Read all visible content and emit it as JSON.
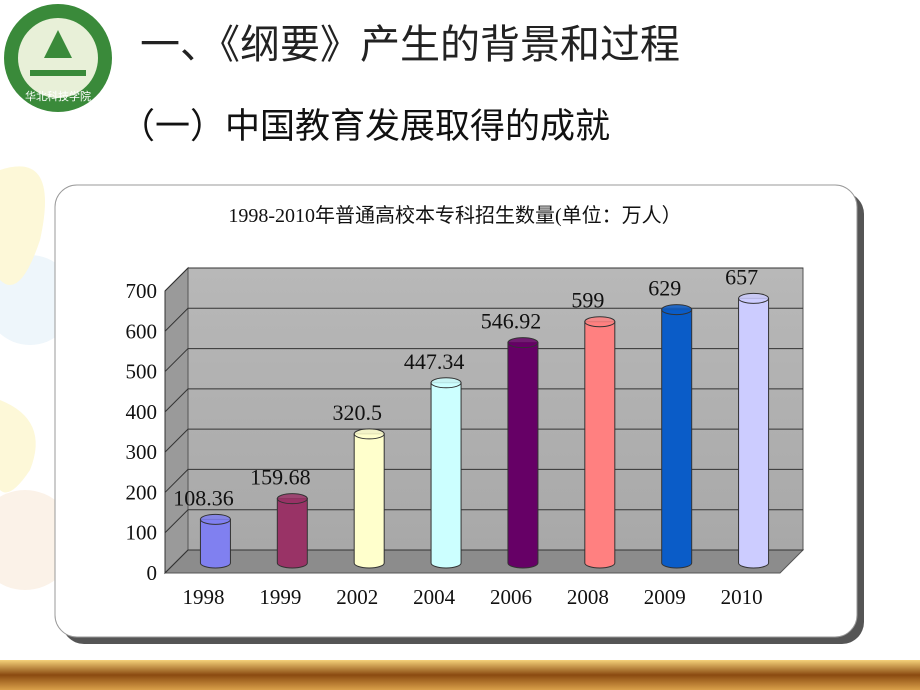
{
  "slide": {
    "title": "一、《纲要》产生的背景和过程",
    "subtitle": "（一）中国教育发展取得的成就",
    "logo_text": "华北科技学院"
  },
  "chart_data": {
    "type": "bar",
    "title": "1998-2010年普通高校本专科招生数量(单位：万人）",
    "categories": [
      "1998",
      "1999",
      "2002",
      "2004",
      "2006",
      "2008",
      "2009",
      "2010"
    ],
    "values": [
      108.36,
      159.68,
      320.5,
      447.34,
      546.92,
      599,
      629,
      657
    ],
    "colors": [
      "#8080f0",
      "#993366",
      "#ffffcc",
      "#ccffff",
      "#660066",
      "#ff8080",
      "#0a5cc8",
      "#ccccff"
    ],
    "ylim": [
      0,
      700
    ],
    "yticks": [
      0,
      100,
      200,
      300,
      400,
      500,
      600,
      700
    ],
    "grid": true
  }
}
